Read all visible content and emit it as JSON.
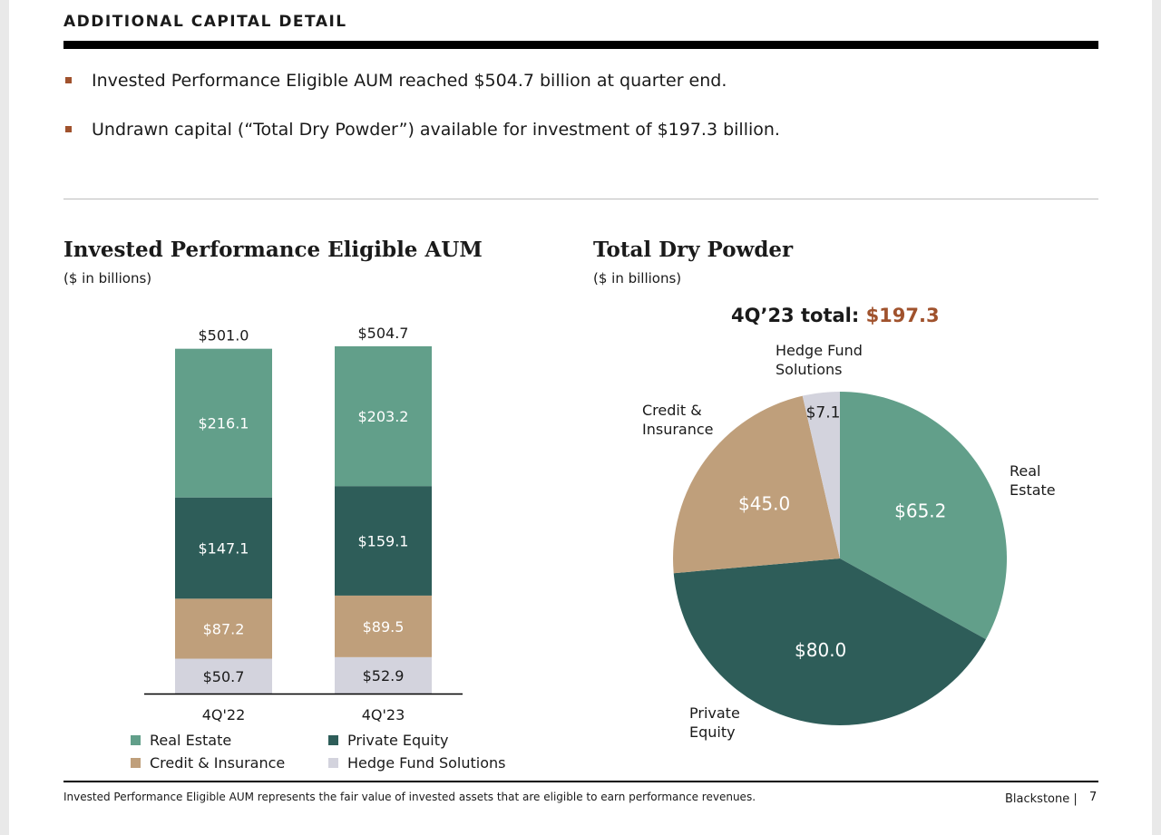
{
  "header": {
    "section_title": "ADDITIONAL CAPITAL DETAIL"
  },
  "bullets": [
    {
      "text": "Invested Performance Eligible AUM reached $504.7 billion at quarter end."
    },
    {
      "text": "Undrawn capital (“Total Dry Powder”) available for investment of $197.3 billion."
    }
  ],
  "left_chart": {
    "title": "Invested Performance Eligible AUM",
    "subtitle": "($ in billions)"
  },
  "right_chart": {
    "title": "Total Dry Powder",
    "subtitle": "($ in billions)",
    "total_label": "4Q’23 total:",
    "total_value": "$197.3"
  },
  "colors": {
    "real_estate": "#629f8a",
    "private_equity": "#2e5d59",
    "credit_insurance": "#bf9f7b",
    "hedge_fund": "#d3d3dd",
    "accent": "#a0522d"
  },
  "chart_data": [
    {
      "type": "bar",
      "stacked": true,
      "categories": [
        "4Q'22",
        "4Q'23"
      ],
      "totals": [
        "$501.0",
        "$504.7"
      ],
      "series": [
        {
          "name": "Hedge Fund Solutions",
          "color": "#d3d3dd",
          "values": [
            50.7,
            52.9
          ],
          "labels": [
            "$50.7",
            "$52.9"
          ]
        },
        {
          "name": "Credit & Insurance",
          "color": "#bf9f7b",
          "values": [
            87.2,
            89.5
          ],
          "labels": [
            "$87.2",
            "$89.5"
          ]
        },
        {
          "name": "Private Equity",
          "color": "#2e5d59",
          "values": [
            147.1,
            159.1
          ],
          "labels": [
            "$147.1",
            "$159.1"
          ]
        },
        {
          "name": "Real Estate",
          "color": "#629f8a",
          "values": [
            216.1,
            203.2
          ],
          "labels": [
            "$216.1",
            "$203.2"
          ]
        }
      ],
      "legend": [
        "Real Estate",
        "Private Equity",
        "Credit & Insurance",
        "Hedge Fund Solutions"
      ],
      "legend_placement": "bottom"
    },
    {
      "type": "pie",
      "slices": [
        {
          "name": "Real Estate",
          "display_name": [
            "Real",
            "Estate"
          ],
          "value": 65.2,
          "label": "$65.2",
          "color": "#629f8a"
        },
        {
          "name": "Private Equity",
          "display_name": [
            "Private",
            "Equity"
          ],
          "value": 80.0,
          "label": "$80.0",
          "color": "#2e5d59"
        },
        {
          "name": "Credit & Insurance",
          "display_name": [
            "Credit &",
            "Insurance"
          ],
          "value": 45.0,
          "label": "$45.0",
          "color": "#bf9f7b"
        },
        {
          "name": "Hedge Fund Solutions",
          "display_name": [
            "Hedge Fund",
            "Solutions"
          ],
          "value": 7.1,
          "label": "$7.1",
          "color": "#d3d3dd"
        }
      ]
    }
  ],
  "footer": {
    "footnote": "Invested Performance Eligible AUM represents the fair value of invested assets that are eligible to earn performance revenues.",
    "brand": "Blackstone |",
    "page_number": "7"
  }
}
